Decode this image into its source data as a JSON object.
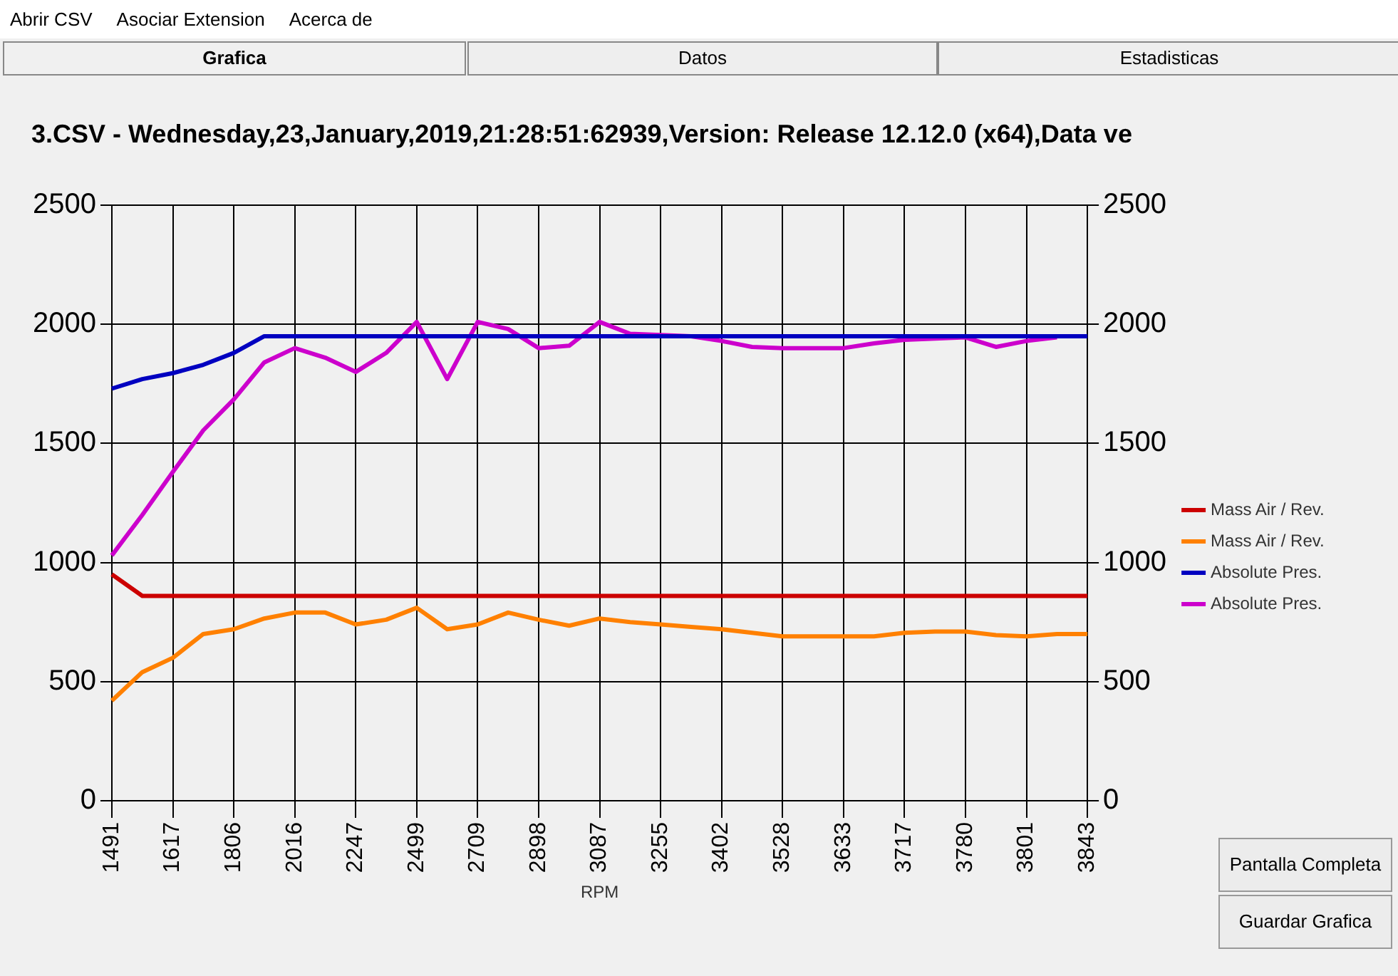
{
  "chart_data": {
    "type": "line",
    "title": "3.CSV - Wednesday,23,January,2019,21:28:51:62939,Version: Release 12.12.0 (x64),Data ve",
    "xlabel": "RPM",
    "categories": [
      "1491",
      null,
      "1617",
      null,
      "1806",
      null,
      "2016",
      null,
      "2247",
      null,
      "2499",
      null,
      "2709",
      null,
      "2898",
      null,
      "3087",
      null,
      "3255",
      null,
      "3402",
      null,
      "3528",
      null,
      "3633",
      null,
      "3717",
      null,
      "3780",
      null,
      "3801",
      null,
      "3843"
    ],
    "series": [
      {
        "name": "Mass Air / Rev.",
        "color": "#cc0000",
        "values": [
          950,
          860,
          860,
          860,
          860,
          860,
          860,
          860,
          860,
          860,
          860,
          860,
          860,
          860,
          860,
          860,
          860,
          860,
          860,
          860,
          860,
          860,
          860,
          860,
          860,
          860,
          860,
          860,
          860,
          860,
          860,
          860,
          860
        ]
      },
      {
        "name": "Mass Air / Rev.",
        "color": "#ff8000",
        "values": [
          420,
          540,
          600,
          700,
          720,
          765,
          790,
          790,
          740,
          760,
          810,
          720,
          740,
          790,
          760,
          735,
          765,
          750,
          740,
          730,
          720,
          705,
          690,
          690,
          690,
          690,
          705,
          710,
          710,
          695,
          690,
          700,
          700
        ]
      },
      {
        "name": "Absolute Pres.",
        "color": "#0000c0",
        "values": [
          1730,
          1770,
          1795,
          1830,
          1880,
          1950,
          1950,
          1950,
          1950,
          1950,
          1950,
          1950,
          1950,
          1950,
          1950,
          1950,
          1950,
          1950,
          1950,
          1950,
          1950,
          1950,
          1950,
          1950,
          1950,
          1950,
          1950,
          1950,
          1950,
          1950,
          1950,
          1950,
          1950
        ]
      },
      {
        "name": "Absolute Pres.",
        "color": "#cc00cc",
        "values": [
          1030,
          1200,
          1380,
          1555,
          1685,
          1840,
          1900,
          1860,
          1800,
          1880,
          2010,
          1770,
          2010,
          1980,
          1900,
          1910,
          2010,
          1960,
          1955,
          1950,
          1930,
          1905,
          1900,
          1900,
          1900,
          1920,
          1935,
          1940,
          1945,
          1905,
          1930,
          1945,
          null
        ]
      }
    ],
    "ylim": [
      0,
      2500
    ],
    "yticks": [
      0,
      500,
      1000,
      1500,
      2000,
      2500
    ],
    "y2lim": [
      0,
      2500
    ],
    "y2ticks": [
      0,
      500,
      1000,
      1500,
      2000,
      2500
    ],
    "grid": true,
    "legend": "right",
    "marker": "none",
    "annotations": [
      "Abrir CSV",
      "Asociar Extension",
      "Acerca de",
      "Grafica",
      "Datos",
      "Estadisticas",
      "Pantalla Completa",
      "Guardar Grafica"
    ]
  }
}
